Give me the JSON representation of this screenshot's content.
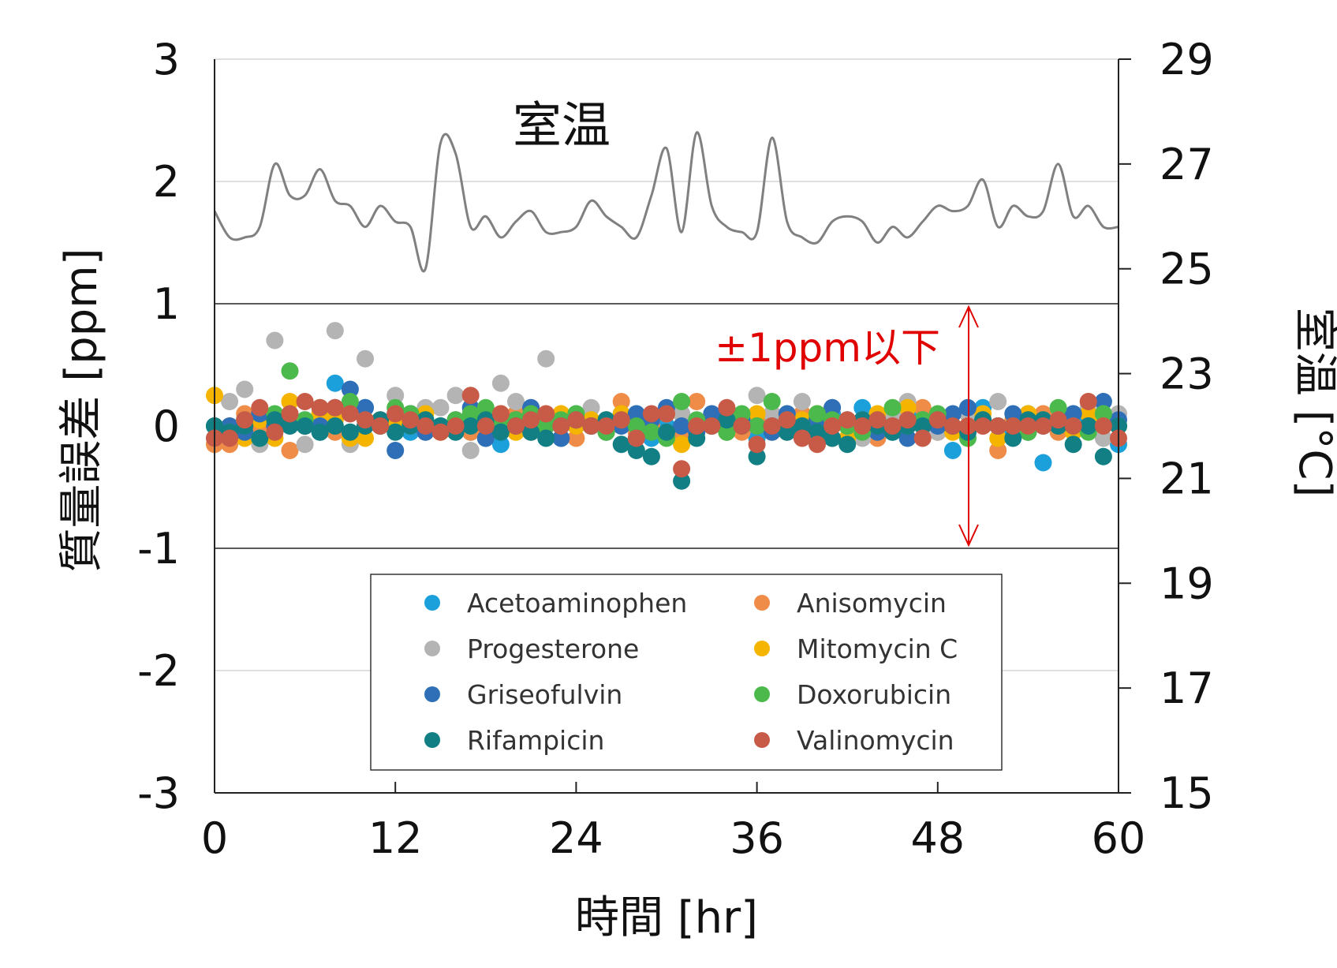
{
  "chart_data": {
    "type": "scatter",
    "xlabel": "時間 [hr]",
    "ylabel": "質量誤差 [ppm]",
    "y2label": "室温 [°C]",
    "xlim": [
      0,
      60
    ],
    "ylim": [
      -3,
      3
    ],
    "y2lim": [
      15,
      29
    ],
    "xticks": [
      0,
      12,
      24,
      36,
      48,
      60
    ],
    "yticks": [
      3,
      2,
      1,
      0,
      -1,
      -2,
      -3
    ],
    "y2ticks": [
      29,
      27,
      25,
      23,
      21,
      19,
      17,
      15
    ],
    "ytick_labels": [
      "3",
      "2",
      "1",
      "0",
      "-1",
      "-2",
      "-3"
    ],
    "xtick_labels": [
      "0",
      "12",
      "24",
      "36",
      "48",
      "60"
    ],
    "y2tick_labels": [
      "29",
      "27",
      "25",
      "23",
      "21",
      "19",
      "17",
      "15"
    ],
    "grid": true,
    "limit_lines": [
      1,
      -1
    ],
    "legend": "bottom-center",
    "temperature": {
      "label": "室温",
      "color": "#808080",
      "x": [
        0,
        1,
        2,
        3,
        4,
        5,
        6,
        7,
        8,
        9,
        10,
        11,
        12,
        13,
        14,
        15,
        16,
        17,
        18,
        19,
        20,
        21,
        22,
        23,
        24,
        25,
        26,
        27,
        28,
        29,
        30,
        31,
        32,
        33,
        34,
        35,
        36,
        37,
        38,
        39,
        40,
        41,
        42,
        43,
        44,
        45,
        46,
        47,
        48,
        49,
        50,
        51,
        52,
        53,
        54,
        55,
        56,
        57,
        58,
        59,
        60
      ],
      "values": [
        26.1,
        25.6,
        25.6,
        25.8,
        27.0,
        26.4,
        26.4,
        26.9,
        26.3,
        26.2,
        25.8,
        26.2,
        25.9,
        25.8,
        25.0,
        27.4,
        27.2,
        25.8,
        26.0,
        25.6,
        25.9,
        26.1,
        25.7,
        25.7,
        25.8,
        26.3,
        26.0,
        25.8,
        25.6,
        26.4,
        27.3,
        25.7,
        27.6,
        26.2,
        25.8,
        25.7,
        25.7,
        27.5,
        25.9,
        25.6,
        25.5,
        25.9,
        26.0,
        25.9,
        25.5,
        25.8,
        25.6,
        25.9,
        26.2,
        26.1,
        26.2,
        26.7,
        25.8,
        26.2,
        26.0,
        26.1,
        27.0,
        26.0,
        26.2,
        25.8,
        25.8
      ]
    },
    "annotation": "±1ppm以下",
    "series": [
      {
        "name": "Acetoaminophen",
        "color": "#1ca0dc",
        "values": [
          0.0,
          -0.05,
          0.05,
          -0.1,
          0.0,
          0.1,
          0.05,
          -0.05,
          0.35,
          -0.1,
          0.15,
          0.0,
          0.1,
          -0.05,
          0.05,
          0.0,
          0.0,
          -0.05,
          -0.1,
          -0.15,
          0.05,
          0.0,
          0.0,
          -0.1,
          0.05,
          0.0,
          0.05,
          0.1,
          0.0,
          -0.1,
          0.0,
          0.1,
          0.0,
          0.05,
          -0.05,
          0.0,
          -0.1,
          0.0,
          0.05,
          -0.05,
          0.0,
          0.1,
          0.05,
          0.15,
          0.0,
          -0.05,
          0.05,
          0.1,
          0.05,
          -0.2,
          0.0,
          0.15,
          0.0,
          -0.05,
          0.1,
          -0.3,
          0.1,
          0.0,
          0.05,
          0.05,
          -0.15
        ]
      },
      {
        "name": "Anisomycin",
        "color": "#ee8c48",
        "values": [
          -0.15,
          -0.15,
          0.1,
          0.0,
          0.05,
          -0.2,
          0.0,
          0.1,
          -0.05,
          0.15,
          0.0,
          0.05,
          0.0,
          0.1,
          -0.05,
          0.0,
          0.05,
          -0.05,
          0.05,
          0.0,
          0.1,
          -0.05,
          0.0,
          0.05,
          -0.1,
          0.0,
          0.05,
          0.2,
          -0.05,
          0.0,
          0.1,
          -0.05,
          0.2,
          0.0,
          0.05,
          -0.05,
          0.0,
          0.05,
          -0.05,
          0.1,
          0.0,
          -0.1,
          0.05,
          0.0,
          -0.1,
          0.05,
          0.0,
          0.15,
          -0.05,
          0.0,
          0.1,
          0.0,
          -0.2,
          0.05,
          0.0,
          0.1,
          -0.05,
          0.0,
          0.2,
          0.05,
          0.0
        ]
      },
      {
        "name": "Progesterone",
        "color": "#b4b4b4",
        "values": [
          -0.1,
          0.2,
          0.3,
          -0.15,
          0.7,
          0.1,
          -0.15,
          0.05,
          0.78,
          -0.15,
          0.55,
          0.0,
          0.25,
          0.1,
          0.15,
          0.15,
          0.25,
          -0.2,
          0.0,
          0.35,
          0.2,
          0.15,
          0.55,
          0.0,
          0.1,
          0.15,
          0.05,
          0.0,
          0.1,
          0.05,
          -0.05,
          0.1,
          -0.05,
          0.05,
          0.1,
          0.0,
          0.25,
          0.1,
          0.0,
          0.2,
          0.05,
          0.15,
          0.0,
          -0.1,
          0.0,
          0.1,
          0.2,
          0.05,
          -0.05,
          0.0,
          0.1,
          0.05,
          0.2,
          0.0,
          -0.05,
          0.05,
          0.0,
          0.1,
          0.15,
          -0.1,
          0.1
        ]
      },
      {
        "name": "Mitomycin C",
        "color": "#f4b400",
        "values": [
          0.25,
          0.0,
          -0.1,
          0.05,
          -0.1,
          0.2,
          0.0,
          0.1,
          0.05,
          -0.1,
          -0.1,
          0.0,
          0.05,
          0.0,
          0.1,
          -0.05,
          0.0,
          0.05,
          0.0,
          0.1,
          -0.05,
          0.0,
          0.05,
          0.1,
          0.0,
          0.05,
          -0.05,
          0.1,
          0.0,
          0.05,
          0.1,
          -0.15,
          0.0,
          0.05,
          -0.05,
          0.0,
          0.1,
          -0.05,
          0.0,
          0.05,
          0.1,
          0.0,
          -0.1,
          0.05,
          0.1,
          0.0,
          0.15,
          0.0,
          0.05,
          -0.05,
          0.0,
          0.1,
          -0.1,
          0.0,
          0.1,
          0.05,
          0.0,
          -0.05,
          0.1,
          0.05,
          0.0
        ]
      },
      {
        "name": "Griseofulvin",
        "color": "#2e6fb8",
        "values": [
          0.0,
          0.0,
          -0.05,
          0.1,
          0.0,
          0.05,
          0.0,
          0.0,
          0.15,
          0.3,
          0.15,
          0.0,
          -0.2,
          0.1,
          -0.05,
          0.0,
          0.05,
          0.15,
          -0.1,
          0.0,
          0.05,
          0.15,
          0.0,
          -0.1,
          0.05,
          0.0,
          -0.05,
          0.0,
          0.1,
          0.05,
          0.15,
          0.0,
          -0.05,
          0.1,
          0.0,
          0.05,
          0.0,
          -0.05,
          0.1,
          0.0,
          0.05,
          0.15,
          0.0,
          0.05,
          -0.05,
          0.0,
          -0.1,
          0.05,
          0.0,
          0.1,
          0.15,
          0.05,
          0.0,
          0.1,
          -0.05,
          0.0,
          0.05,
          0.1,
          0.0,
          0.2,
          0.05
        ]
      },
      {
        "name": "Doxorubicin",
        "color": "#4bb94b",
        "values": [
          0.0,
          -0.05,
          0.05,
          -0.1,
          0.1,
          0.45,
          0.05,
          0.15,
          0.0,
          0.2,
          0.05,
          0.0,
          0.15,
          0.1,
          0.05,
          0.0,
          0.05,
          0.1,
          0.15,
          0.0,
          0.05,
          0.1,
          0.0,
          0.05,
          0.1,
          0.0,
          -0.05,
          0.05,
          0.0,
          -0.05,
          -0.1,
          0.2,
          0.05,
          0.0,
          -0.05,
          0.1,
          0.0,
          0.2,
          0.05,
          0.0,
          0.1,
          0.05,
          0.0,
          -0.05,
          0.05,
          0.15,
          0.0,
          0.05,
          0.1,
          0.0,
          -0.1,
          0.05,
          0.0,
          0.0,
          -0.05,
          0.05,
          0.15,
          0.0,
          -0.05,
          0.1,
          0.0
        ]
      },
      {
        "name": "Rifampicin",
        "color": "#117f83",
        "values": [
          0.0,
          -0.05,
          0.0,
          -0.1,
          0.05,
          0.0,
          0.0,
          -0.05,
          0.0,
          -0.05,
          0.0,
          0.05,
          -0.05,
          0.0,
          0.05,
          0.0,
          -0.05,
          0.0,
          0.05,
          -0.05,
          0.0,
          -0.05,
          -0.1,
          0.0,
          0.05,
          0.0,
          0.05,
          -0.15,
          -0.2,
          -0.25,
          -0.05,
          -0.45,
          -0.1,
          0.0,
          0.05,
          0.0,
          -0.25,
          0.0,
          -0.05,
          0.0,
          -0.05,
          -0.1,
          -0.15,
          0.05,
          0.0,
          -0.05,
          0.0,
          0.0,
          0.05,
          0.0,
          -0.05,
          0.05,
          0.0,
          -0.1,
          0.05,
          0.05,
          0.0,
          -0.15,
          0.0,
          -0.25,
          0.0
        ]
      },
      {
        "name": "Valinomycin",
        "color": "#c85a48",
        "values": [
          -0.1,
          -0.1,
          0.05,
          0.15,
          -0.05,
          0.1,
          0.2,
          0.15,
          0.15,
          0.1,
          0.05,
          0.0,
          0.1,
          0.05,
          0.0,
          -0.05,
          0.0,
          0.25,
          0.0,
          0.1,
          0.0,
          0.05,
          0.1,
          0.0,
          0.05,
          0.0,
          0.0,
          0.05,
          -0.1,
          0.1,
          0.1,
          -0.35,
          0.0,
          0.0,
          0.15,
          0.0,
          -0.15,
          0.0,
          0.05,
          -0.1,
          -0.15,
          0.0,
          0.05,
          0.0,
          0.05,
          0.0,
          0.05,
          -0.1,
          0.05,
          0.0,
          0.0,
          0.0,
          0.0,
          0.0,
          0.0,
          0.0,
          0.05,
          0.0,
          0.2,
          0.0,
          -0.1
        ]
      }
    ]
  }
}
